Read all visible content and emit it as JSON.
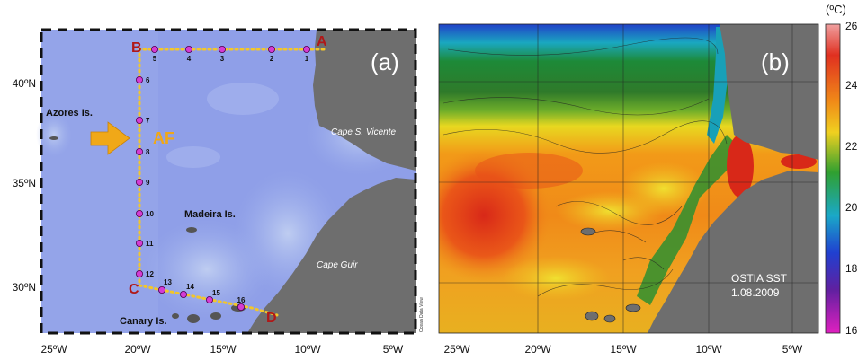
{
  "panel_a": {
    "panel_label": "(a)",
    "lat_ticks": [
      "40ºN",
      "35ºN",
      "30ºN"
    ],
    "lon_ticks": [
      "25ºW",
      "20ºW",
      "15ºW",
      "10ºW",
      "5ºW"
    ],
    "corner_labels": [
      "A",
      "B",
      "C",
      "D"
    ],
    "stations": [
      "1",
      "2",
      "3",
      "4",
      "5",
      "6",
      "7",
      "8",
      "9",
      "10",
      "11",
      "12",
      "13",
      "14",
      "15",
      "16"
    ],
    "place_labels": {
      "azores": "Azores Is.",
      "madeira": "Madeira Is.",
      "canary": "Canary Is.",
      "cape_vicente": "Cape S. Vicente",
      "cape_guir": "Cape Guir",
      "af": "AF"
    },
    "credit": "Ocean Data View",
    "colors": {
      "ocean": "#8f9fe8",
      "land": "#6e6e6e",
      "transect": "#f2c62b",
      "station": "#d43cd4",
      "corner": "#b01818",
      "arrow": "#f0a818"
    }
  },
  "panel_b": {
    "panel_label": "(b)",
    "lon_ticks": [
      "25ºW",
      "20ºW",
      "15ºW",
      "10ºW",
      "5ºW"
    ],
    "annotation_line1": "OSTIA SST",
    "annotation_line2": "1.08.2009",
    "colorbar": {
      "unit": "(ºC)",
      "ticks": [
        "26",
        "24",
        "22",
        "20",
        "18",
        "16"
      ],
      "min": 16,
      "max": 26
    }
  }
}
